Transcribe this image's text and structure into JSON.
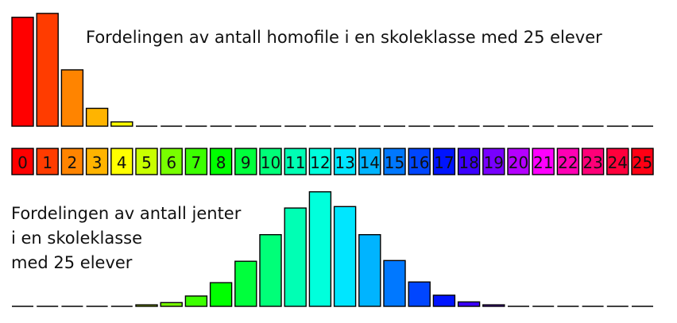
{
  "chart_data": [
    {
      "type": "bar",
      "title": "Fordelingen av antall homofile i en skoleklasse med 25 elever",
      "categories": [
        "0",
        "1",
        "2",
        "3",
        "4",
        "5",
        "6",
        "7",
        "8",
        "9",
        "10",
        "11",
        "12",
        "13",
        "14",
        "15",
        "16",
        "17",
        "18",
        "19",
        "20",
        "21",
        "22",
        "23",
        "24",
        "25"
      ],
      "values": [
        0.28,
        0.29,
        0.145,
        0.046,
        0.011,
        0.002,
        0,
        0,
        0,
        0,
        0,
        0,
        0,
        0,
        0,
        0,
        0,
        0,
        0,
        0,
        0,
        0,
        0,
        0,
        0,
        0
      ],
      "xlabel": "",
      "ylabel": "",
      "ylim": [
        0,
        0.3
      ],
      "grid": false,
      "legend": "none"
    },
    {
      "type": "bar",
      "title": "Fordelingen av antall jenter\ni en skoleklasse\nmed 25 elever",
      "categories": [
        "0",
        "1",
        "2",
        "3",
        "4",
        "5",
        "6",
        "7",
        "8",
        "9",
        "10",
        "11",
        "12",
        "13",
        "14",
        "15",
        "16",
        "17",
        "18",
        "19",
        "20",
        "21",
        "22",
        "23",
        "24",
        "25"
      ],
      "values": [
        0,
        0,
        0,
        0,
        0,
        0.002,
        0.005,
        0.014,
        0.032,
        0.061,
        0.097,
        0.133,
        0.155,
        0.135,
        0.097,
        0.062,
        0.033,
        0.015,
        0.006,
        0.002,
        0.001,
        0,
        0,
        0,
        0,
        0
      ],
      "xlabel": "",
      "ylabel": "",
      "ylim": [
        0,
        0.16
      ],
      "grid": false,
      "legend": "none"
    }
  ],
  "colors": [
    "#ff0000",
    "#ff3c00",
    "#ff8400",
    "#ffb400",
    "#ffff00",
    "#c8ff00",
    "#78ff00",
    "#3cff00",
    "#00ff00",
    "#00ff3c",
    "#00ff78",
    "#00ffb4",
    "#00ffdc",
    "#00e6ff",
    "#00b4ff",
    "#0078ff",
    "#0046ff",
    "#0014ff",
    "#3c00ff",
    "#7800ff",
    "#b400ff",
    "#ff00ff",
    "#ff00b4",
    "#ff0078",
    "#ff003c",
    "#ff0014"
  ]
}
